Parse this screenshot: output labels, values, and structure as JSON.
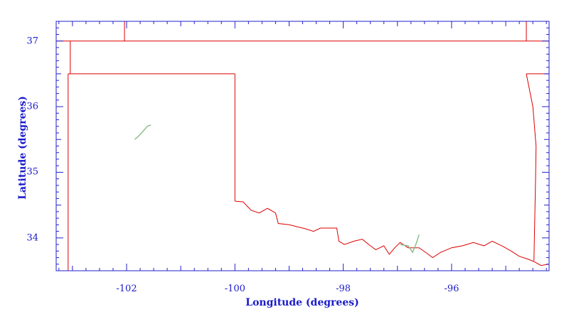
{
  "map": {
    "xlabel": "Longitude (degrees)",
    "ylabel": "Latitude (degrees)",
    "xlim": [
      -103.3,
      -94.2
    ],
    "ylim": [
      33.5,
      37.3
    ],
    "x_ticks": [
      -102,
      -100,
      -98,
      -96
    ],
    "x_tick_labels": [
      "-102",
      "-100",
      "-98",
      "-96"
    ],
    "y_ticks": [
      34,
      35,
      36,
      37
    ],
    "y_tick_labels": [
      "34",
      "35",
      "36",
      "37"
    ],
    "colors": {
      "frame": "#2222cc",
      "boundary": "#dd0000",
      "water": "#8fbf8f",
      "text": "#1a1acc"
    },
    "boundaries": [
      {
        "name": "state-line-37",
        "points": [
          [
            -103.3,
            37.0
          ],
          [
            -94.2,
            37.0
          ]
        ]
      },
      {
        "name": "colorado-kansas-border",
        "points": [
          [
            -102.04,
            37.0
          ],
          [
            -102.04,
            37.3
          ]
        ]
      },
      {
        "name": "kansas-missouri-border",
        "points": [
          [
            -94.62,
            37.0
          ],
          [
            -94.62,
            37.3
          ]
        ]
      },
      {
        "name": "new-mexico-texas-east",
        "points": [
          [
            -103.04,
            37.0
          ],
          [
            -103.04,
            36.5
          ]
        ]
      },
      {
        "name": "panhandle-north-border",
        "points": [
          [
            -103.08,
            36.5
          ],
          [
            -100.0,
            36.5
          ]
        ]
      },
      {
        "name": "new-mexico-texas-west",
        "points": [
          [
            -103.08,
            36.5
          ],
          [
            -103.08,
            33.5
          ]
        ]
      },
      {
        "name": "texas-panhandle-east",
        "points": [
          [
            -100.0,
            36.5
          ],
          [
            -100.0,
            34.56
          ]
        ]
      },
      {
        "name": "oklahoma-arkansas-border",
        "points": [
          [
            -94.62,
            36.5
          ],
          [
            -94.5,
            36.0
          ],
          [
            -94.44,
            35.4
          ],
          [
            -94.45,
            34.9
          ],
          [
            -94.48,
            33.65
          ]
        ]
      },
      {
        "name": "missouri-arkansas-border",
        "points": [
          [
            -94.62,
            36.5
          ],
          [
            -94.2,
            36.5
          ]
        ]
      },
      {
        "name": "red-river-border",
        "points": [
          [
            -100.0,
            34.56
          ],
          [
            -99.85,
            34.55
          ],
          [
            -99.7,
            34.42
          ],
          [
            -99.55,
            34.38
          ],
          [
            -99.4,
            34.45
          ],
          [
            -99.25,
            34.38
          ],
          [
            -99.2,
            34.22
          ],
          [
            -99.0,
            34.2
          ],
          [
            -98.85,
            34.17
          ],
          [
            -98.7,
            34.14
          ],
          [
            -98.55,
            34.1
          ],
          [
            -98.42,
            34.15
          ],
          [
            -98.12,
            34.15
          ],
          [
            -98.08,
            33.95
          ],
          [
            -97.98,
            33.9
          ],
          [
            -97.8,
            33.95
          ],
          [
            -97.65,
            33.98
          ],
          [
            -97.5,
            33.88
          ],
          [
            -97.4,
            33.82
          ],
          [
            -97.25,
            33.88
          ],
          [
            -97.15,
            33.75
          ],
          [
            -97.05,
            33.85
          ],
          [
            -96.95,
            33.93
          ],
          [
            -96.8,
            33.85
          ],
          [
            -96.6,
            33.85
          ],
          [
            -96.48,
            33.78
          ],
          [
            -96.35,
            33.7
          ],
          [
            -96.2,
            33.78
          ],
          [
            -96.0,
            33.85
          ],
          [
            -95.8,
            33.88
          ],
          [
            -95.6,
            33.93
          ],
          [
            -95.4,
            33.88
          ],
          [
            -95.25,
            33.95
          ],
          [
            -95.05,
            33.87
          ],
          [
            -94.9,
            33.8
          ],
          [
            -94.75,
            33.72
          ],
          [
            -94.6,
            33.68
          ],
          [
            -94.48,
            33.64
          ],
          [
            -94.35,
            33.58
          ],
          [
            -94.2,
            33.6
          ]
        ]
      }
    ],
    "water_bodies": [
      {
        "name": "lake-meredith",
        "points": [
          [
            -101.85,
            35.5
          ],
          [
            -101.78,
            35.55
          ],
          [
            -101.7,
            35.62
          ],
          [
            -101.62,
            35.7
          ],
          [
            -101.55,
            35.72
          ]
        ]
      },
      {
        "name": "lake-texoma",
        "points": [
          [
            -96.95,
            33.9
          ],
          [
            -96.8,
            33.88
          ],
          [
            -96.72,
            33.78
          ],
          [
            -96.65,
            33.92
          ],
          [
            -96.6,
            34.05
          ]
        ]
      }
    ]
  }
}
